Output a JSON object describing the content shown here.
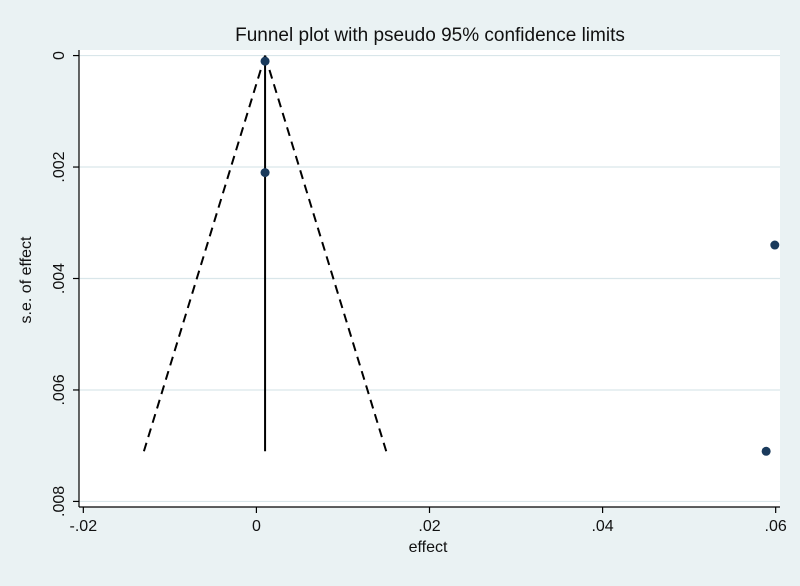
{
  "chart_data": {
    "type": "scatter",
    "title": "Funnel plot with pseudo 95% confidence limits",
    "xlabel": "effect",
    "ylabel": "s.e. of effect",
    "xlim": [
      -0.0205,
      0.0605
    ],
    "ylim": [
      -0.0001,
      0.0081
    ],
    "y_reversed": true,
    "x_ticks": [
      -0.02,
      0,
      0.02,
      0.04,
      0.06
    ],
    "x_tick_labels": [
      "-.02",
      "0",
      ".02",
      ".04",
      ".06"
    ],
    "y_ticks": [
      0,
      0.002,
      0.004,
      0.006,
      0.008
    ],
    "y_tick_labels": [
      "0",
      ".002",
      ".004",
      ".006",
      ".008"
    ],
    "grid": true,
    "points": [
      {
        "x": 0.001,
        "y": 0.0001
      },
      {
        "x": 0.001,
        "y": 0.0021
      },
      {
        "x": 0.0599,
        "y": 0.0034
      },
      {
        "x": 0.0589,
        "y": 0.0071
      }
    ],
    "pooled_effect": 0.001,
    "funnel": {
      "center": 0.001,
      "se_max": 0.0071,
      "left_x_at_max": -0.013,
      "right_x_at_max": 0.015
    },
    "colors": {
      "background": "#eaf2f3",
      "plot_area": "#ffffff",
      "point": "#1a3a5c",
      "lines": "#000000",
      "grid": "#d9e6ea"
    }
  }
}
